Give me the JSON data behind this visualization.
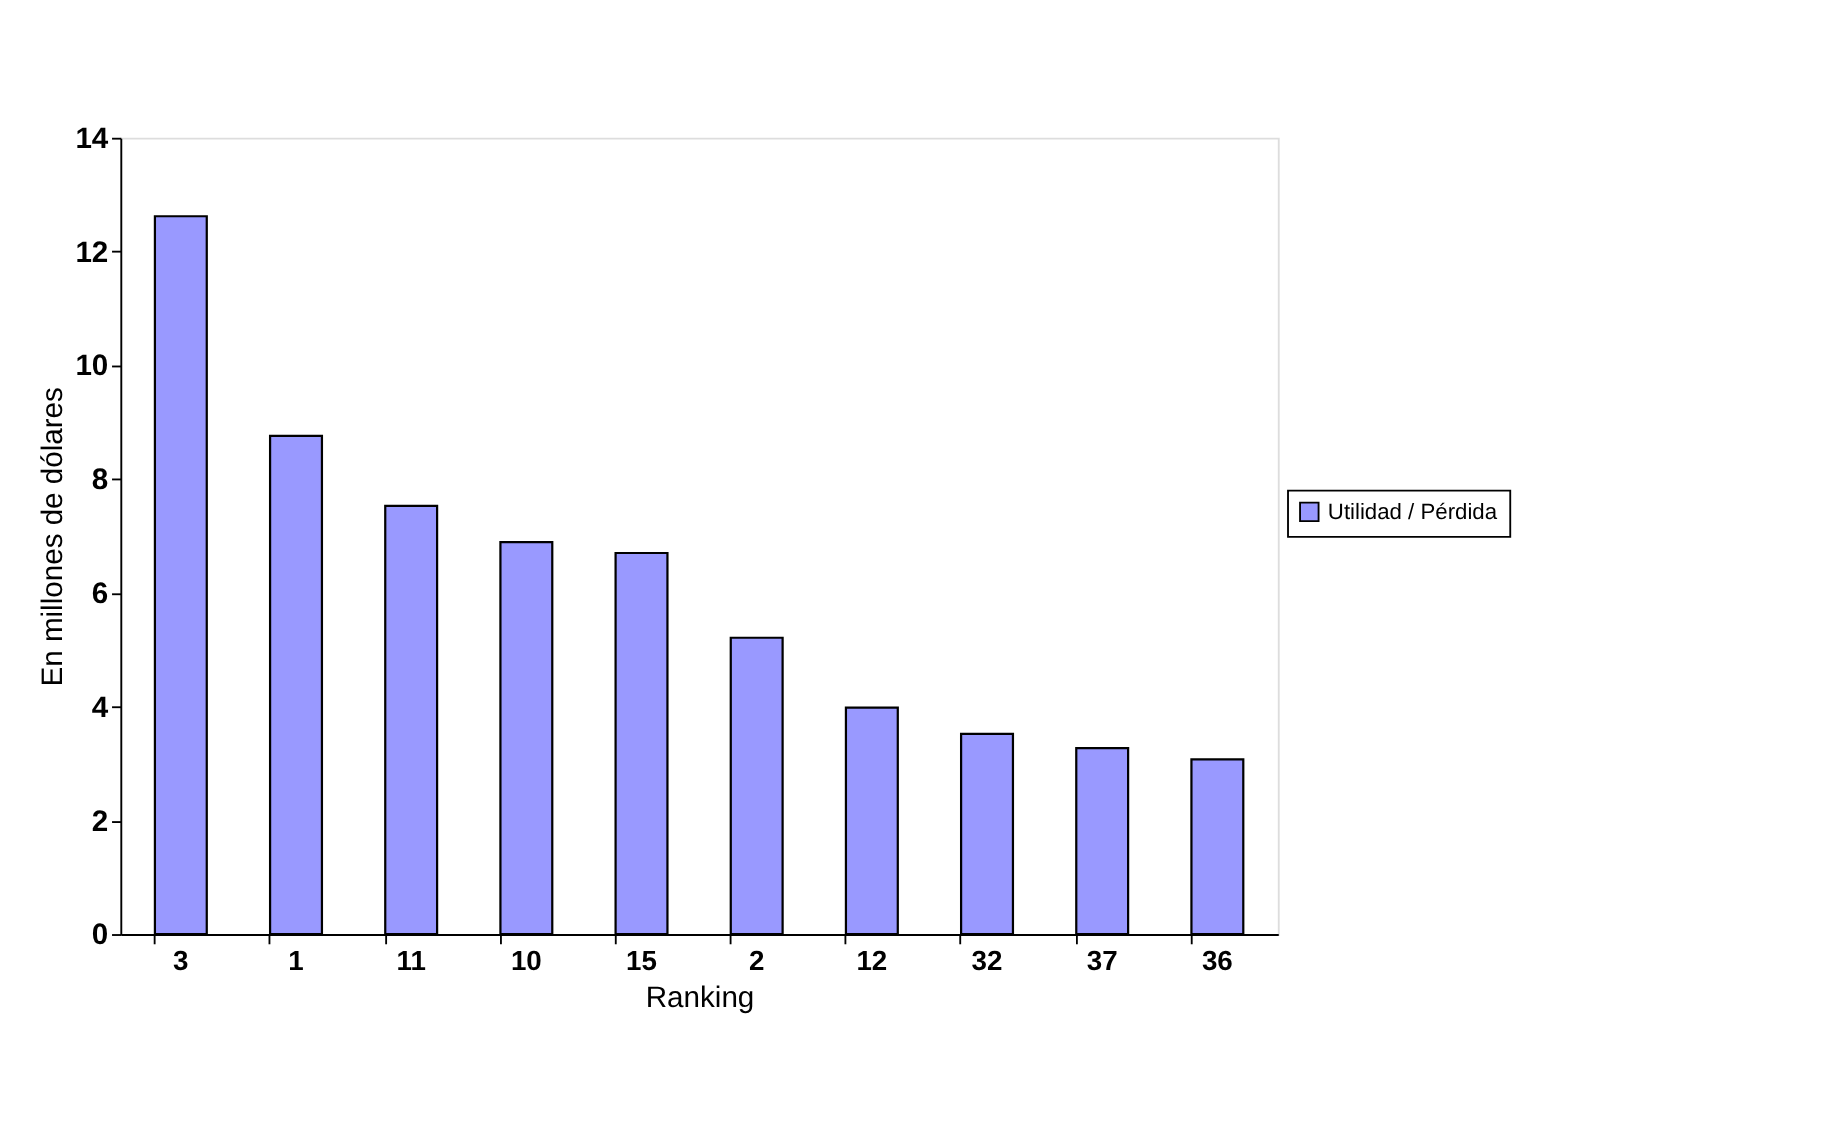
{
  "chart_data": {
    "type": "bar",
    "xlabel": "Ranking",
    "ylabel": "En millones de dólares",
    "categories": [
      "3",
      "1",
      "11",
      "10",
      "15",
      "2",
      "12",
      "32",
      "37",
      "36"
    ],
    "series": [
      {
        "name": "Utilidad / Pérdida",
        "color": "#9999ff",
        "values": [
          12.62,
          8.76,
          7.53,
          6.89,
          6.7,
          5.21,
          3.98,
          3.52,
          3.27,
          3.07
        ]
      }
    ],
    "ylim": [
      0,
      14
    ],
    "yticks": [
      0,
      2,
      4,
      6,
      8,
      10,
      12,
      14
    ],
    "grid": false,
    "legend": "right"
  }
}
